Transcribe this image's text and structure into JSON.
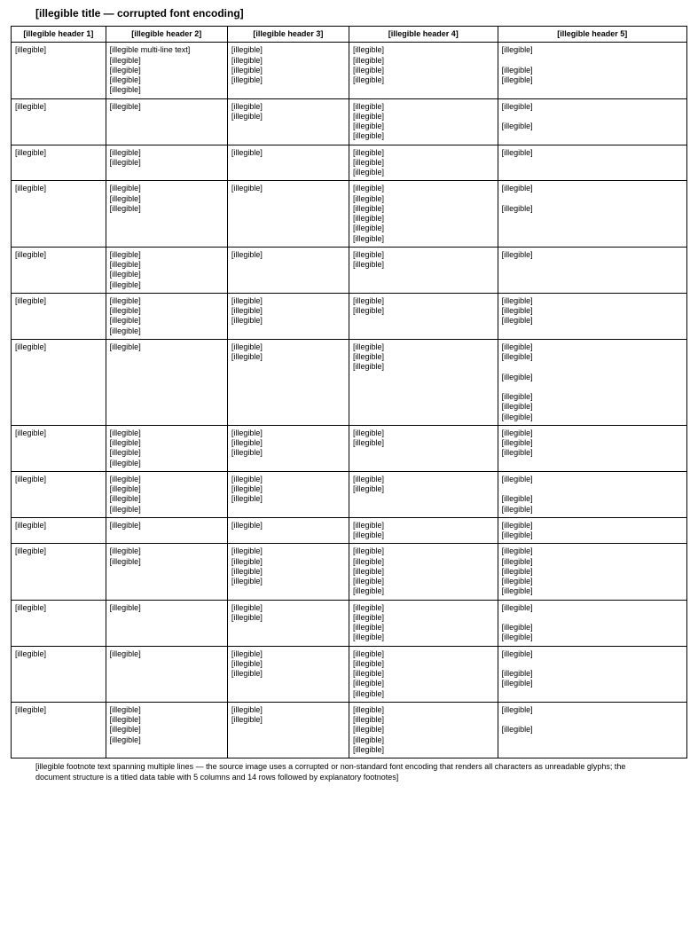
{
  "title": "[illegible title — corrupted font encoding]",
  "columns": [
    "[illegible header 1]",
    "[illegible header 2]",
    "[illegible header 3]",
    "[illegible header 4]",
    "[illegible header 5]"
  ],
  "rows": [
    {
      "c1": "[illegible]",
      "c2": "[illegible multi-line text]\n[illegible]\n[illegible]\n[illegible]\n[illegible]",
      "c3": "[illegible]\n[illegible]\n[illegible]\n[illegible]",
      "c4": "[illegible]\n[illegible]\n[illegible]\n[illegible]",
      "c5": "[illegible]\n\n[illegible]\n[illegible]"
    },
    {
      "c1": "[illegible]",
      "c2": "[illegible]",
      "c3": "[illegible]\n[illegible]",
      "c4": "[illegible]\n[illegible]\n[illegible]\n[illegible]",
      "c5": "[illegible]\n\n[illegible]"
    },
    {
      "c1": "[illegible]",
      "c2": "[illegible]\n[illegible]",
      "c3": "[illegible]",
      "c4": "[illegible]\n[illegible]\n[illegible]",
      "c5": "[illegible]"
    },
    {
      "c1": "[illegible]",
      "c2": "[illegible]\n[illegible]\n[illegible]",
      "c3": "[illegible]",
      "c4": "[illegible]\n[illegible]\n[illegible]\n[illegible]\n[illegible]\n[illegible]",
      "c5": "[illegible]\n\n[illegible]"
    },
    {
      "c1": "[illegible]",
      "c2": "[illegible]\n[illegible]\n[illegible]\n[illegible]",
      "c3": "[illegible]",
      "c4": "[illegible]\n[illegible]",
      "c5": "[illegible]"
    },
    {
      "c1": "[illegible]",
      "c2": "[illegible]\n[illegible]\n[illegible]\n[illegible]",
      "c3": "[illegible]\n[illegible]\n[illegible]",
      "c4": "[illegible]\n[illegible]",
      "c5": "[illegible]\n[illegible]\n[illegible]"
    },
    {
      "c1": "[illegible]",
      "c2": "[illegible]",
      "c3": "[illegible]\n[illegible]",
      "c4": "[illegible]\n[illegible]\n[illegible]",
      "c5": "[illegible]\n[illegible]\n\n[illegible]\n\n[illegible]\n[illegible]\n[illegible]"
    },
    {
      "c1": "[illegible]",
      "c2": "[illegible]\n[illegible]\n[illegible]\n[illegible]",
      "c3": "[illegible]\n[illegible]\n[illegible]",
      "c4": "[illegible]\n[illegible]",
      "c5": "[illegible]\n[illegible]\n[illegible]"
    },
    {
      "c1": "[illegible]",
      "c2": "[illegible]\n[illegible]\n[illegible]\n[illegible]",
      "c3": "[illegible]\n[illegible]\n[illegible]",
      "c4": "[illegible]\n[illegible]",
      "c5": "[illegible]\n\n[illegible]\n[illegible]"
    },
    {
      "c1": "[illegible]",
      "c2": "[illegible]",
      "c3": "[illegible]",
      "c4": "[illegible]\n[illegible]",
      "c5": "[illegible]\n[illegible]"
    },
    {
      "c1": "[illegible]",
      "c2": "[illegible]\n[illegible]",
      "c3": "[illegible]\n[illegible]\n[illegible]\n[illegible]",
      "c4": "[illegible]\n[illegible]\n[illegible]\n[illegible]\n[illegible]",
      "c5": "[illegible]\n[illegible]\n[illegible]\n[illegible]\n[illegible]"
    },
    {
      "c1": "[illegible]",
      "c2": "[illegible]",
      "c3": "[illegible]\n[illegible]",
      "c4": "[illegible]\n[illegible]\n[illegible]\n[illegible]",
      "c5": "[illegible]\n\n[illegible]\n[illegible]"
    },
    {
      "c1": "[illegible]",
      "c2": "[illegible]",
      "c3": "[illegible]\n[illegible]\n[illegible]",
      "c4": "[illegible]\n[illegible]\n[illegible]\n[illegible]\n[illegible]",
      "c5": "[illegible]\n\n[illegible]\n[illegible]"
    },
    {
      "c1": "[illegible]",
      "c2": "[illegible]\n[illegible]\n[illegible]\n[illegible]",
      "c3": "[illegible]\n[illegible]",
      "c4": "[illegible]\n[illegible]\n[illegible]\n[illegible]\n[illegible]",
      "c5": "[illegible]\n\n[illegible]"
    }
  ],
  "footnote": "[illegible footnote text spanning multiple lines — the source image uses a corrupted or non-standard font encoding that renders all characters as unreadable glyphs; the document structure is a titled data table with 5 columns and 14 rows followed by explanatory footnotes]",
  "styling": {
    "border_color": "#000000",
    "background_color": "#ffffff",
    "text_color": "#000000",
    "title_fontsize": 12,
    "body_fontsize": 9,
    "title_weight": "bold",
    "header_weight": "bold"
  }
}
